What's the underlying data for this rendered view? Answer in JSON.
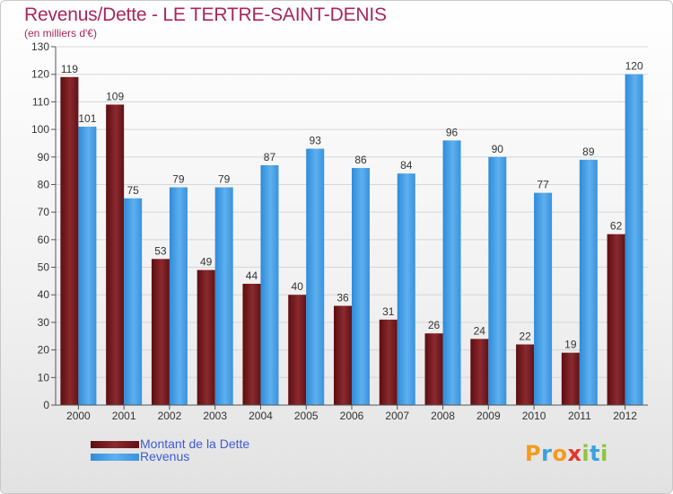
{
  "title": "Revenus/Dette - LE TERTRE-SAINT-DENIS",
  "subtitle": "(en milliers d'€)",
  "logo": {
    "text": "Proxiti",
    "letters": [
      {
        "ch": "P",
        "color": "#f39b1f"
      },
      {
        "ch": "r",
        "color": "#3aa1e1"
      },
      {
        "ch": "o",
        "color": "#f39b1f"
      },
      {
        "ch": "x",
        "color": "#e5352b"
      },
      {
        "ch": "i",
        "color": "#8cc63f"
      },
      {
        "ch": "t",
        "color": "#3aa1e1"
      },
      {
        "ch": "i",
        "color": "#8cc63f"
      }
    ]
  },
  "chart_data": {
    "type": "bar",
    "categories": [
      "2000",
      "2001",
      "2002",
      "2003",
      "2004",
      "2005",
      "2006",
      "2007",
      "2008",
      "2009",
      "2010",
      "2011",
      "2012"
    ],
    "series": [
      {
        "name": "Montant de la Dette",
        "color": "#7a1c1f",
        "values": [
          119,
          109,
          53,
          49,
          44,
          40,
          36,
          31,
          26,
          24,
          22,
          19,
          62
        ]
      },
      {
        "name": "Revenus",
        "color": "#4fa3e6",
        "values": [
          101,
          75,
          79,
          79,
          87,
          93,
          86,
          84,
          96,
          90,
          77,
          89,
          120
        ]
      }
    ],
    "ylim": [
      0,
      130
    ],
    "yticks": [
      0,
      10,
      20,
      30,
      40,
      50,
      60,
      70,
      80,
      90,
      100,
      110,
      120,
      130
    ],
    "grid": true,
    "data_labels": true,
    "legend_position": "bottom-left"
  }
}
